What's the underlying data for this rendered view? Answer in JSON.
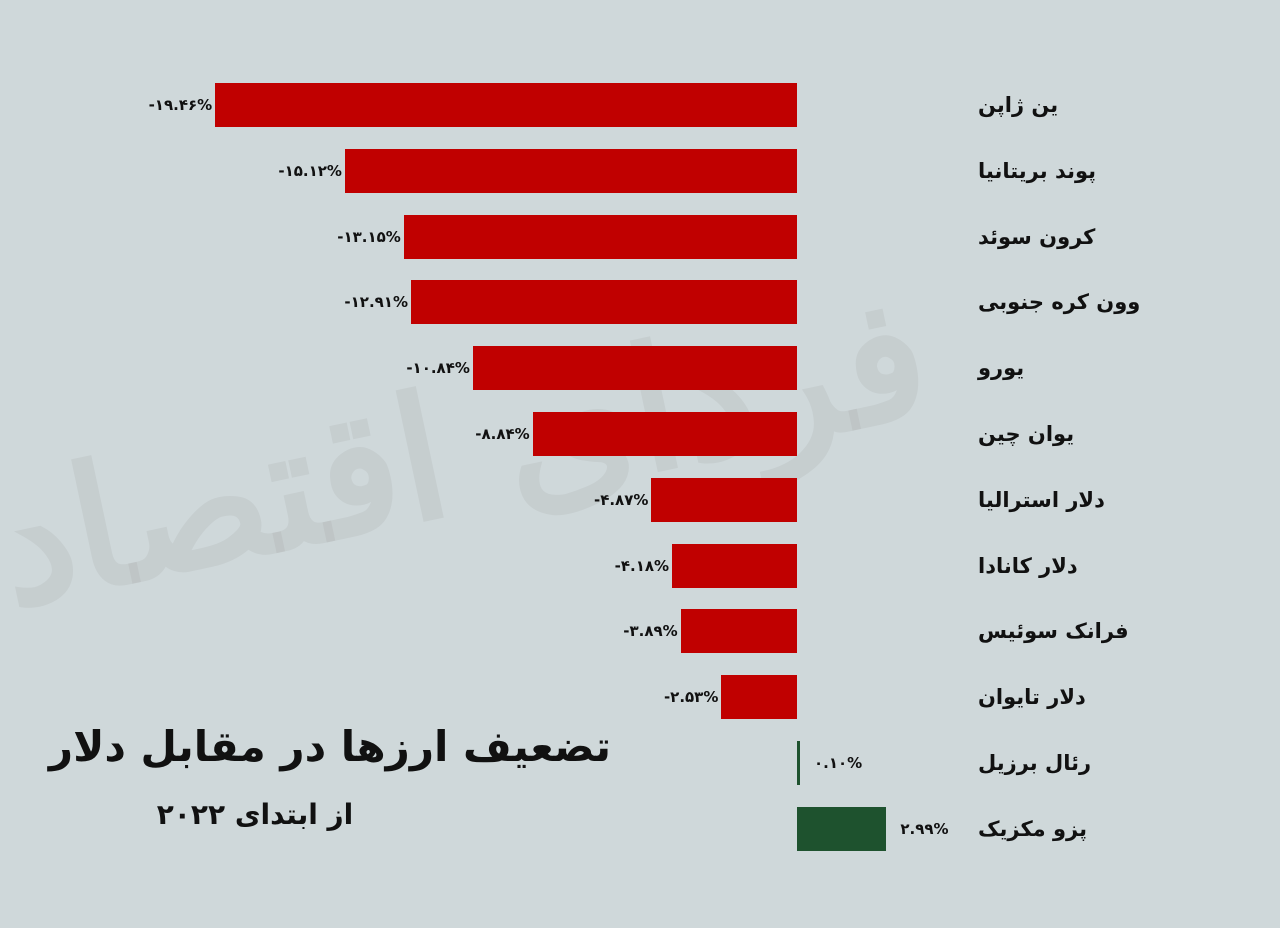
{
  "watermark": "فردای اقتصاد",
  "title": "تضعیف ارزها در مقابل دلار",
  "subtitle": "از ابتدای ۲۰۲۲",
  "colors": {
    "negative": "#c00000",
    "positive": "#1e522e",
    "background": "#cfd8da"
  },
  "chart_data": {
    "type": "bar",
    "orientation": "horizontal",
    "title": "تضعیف ارزها در مقابل دلار",
    "subtitle": "از ابتدای ۲۰۲۲",
    "xlabel": "",
    "ylabel": "",
    "unit": "%",
    "grid": false,
    "legend": null,
    "categories": [
      "ین ژاپن",
      "پوند بریتانیا",
      "کرون سوئد",
      "وون کره جنوبی",
      "یورو",
      "یوان چین",
      "دلار استرالیا",
      "دلار کانادا",
      "فرانک سوئیس",
      "دلار تایوان",
      "رئال برزیل",
      "پزو مکزیک"
    ],
    "values": [
      -19.46,
      -15.12,
      -13.15,
      -12.91,
      -10.84,
      -8.84,
      -4.87,
      -4.18,
      -3.89,
      -2.53,
      0.1,
      2.99
    ],
    "value_labels": [
      "-۱۹.۴۶%",
      "-۱۵.۱۲%",
      "-۱۳.۱۵%",
      "-۱۲.۹۱%",
      "-۱۰.۸۴%",
      "-۸.۸۴%",
      "-۴.۸۷%",
      "-۴.۱۸%",
      "-۳.۸۹%",
      "-۲.۵۳%",
      "۰.۱۰%",
      "۲.۹۹%"
    ],
    "xlim": [
      -20,
      3
    ]
  },
  "rows": [
    {
      "label": "ین ژاپن",
      "value_label": "-۱۹.۴۶%"
    },
    {
      "label": "پوند بریتانیا",
      "value_label": "-۱۵.۱۲%"
    },
    {
      "label": "کرون سوئد",
      "value_label": "-۱۳.۱۵%"
    },
    {
      "label": "وون کره جنوبی",
      "value_label": "-۱۲.۹۱%"
    },
    {
      "label": "یورو",
      "value_label": "-۱۰.۸۴%"
    },
    {
      "label": "یوان چین",
      "value_label": "-۸.۸۴%"
    },
    {
      "label": "دلار استرالیا",
      "value_label": "-۴.۸۷%"
    },
    {
      "label": "دلار کانادا",
      "value_label": "-۴.۱۸%"
    },
    {
      "label": "فرانک سوئیس",
      "value_label": "-۳.۸۹%"
    },
    {
      "label": "دلار تایوان",
      "value_label": "-۲.۵۳%"
    },
    {
      "label": "رئال برزیل",
      "value_label": "۰.۱۰%"
    },
    {
      "label": "پزو مکزیک",
      "value_label": "۲.۹۹%"
    }
  ]
}
